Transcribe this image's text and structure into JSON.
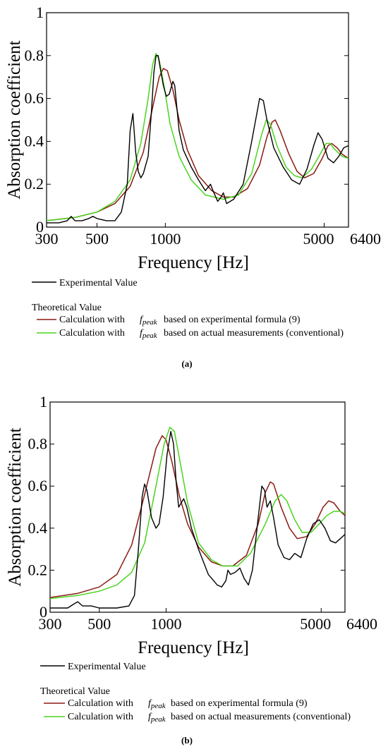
{
  "chart_data": [
    {
      "type": "line",
      "panel_label": "(a)",
      "ylabel": "Absorption coefficient",
      "xlabel": "Frequency [Hz]",
      "xscale": "log",
      "xlim": [
        300,
        6400
      ],
      "ylim": [
        0,
        1
      ],
      "x_ticks": [
        300,
        500,
        1000,
        5000,
        6400
      ],
      "y_ticks": [
        0,
        0.2,
        0.4,
        0.6,
        0.8,
        1
      ],
      "y_tick_labels": [
        "0",
        "0.2",
        "0.4",
        "0.6",
        "0.8",
        "1"
      ],
      "legend": {
        "experimental_label": "Experimental Value",
        "theoretical_heading": "Theoretical Value",
        "calc_prefix": "Calculation with",
        "fpeak_symbol": "f",
        "fpeak_subscript": "peak",
        "formula_suffix": "based on experimental formula (9)",
        "measured_suffix": "based on actual measurements (conventional)"
      },
      "series": [
        {
          "key": "experimental",
          "color": "#000000",
          "points": [
            [
              300,
              0.02
            ],
            [
              340,
              0.02
            ],
            [
              370,
              0.03
            ],
            [
              385,
              0.05
            ],
            [
              400,
              0.03
            ],
            [
              430,
              0.03
            ],
            [
              460,
              0.04
            ],
            [
              480,
              0.05
            ],
            [
              500,
              0.04
            ],
            [
              550,
              0.03
            ],
            [
              600,
              0.03
            ],
            [
              640,
              0.07
            ],
            [
              680,
              0.2
            ],
            [
              700,
              0.45
            ],
            [
              720,
              0.53
            ],
            [
              740,
              0.35
            ],
            [
              760,
              0.26
            ],
            [
              780,
              0.23
            ],
            [
              800,
              0.25
            ],
            [
              840,
              0.33
            ],
            [
              870,
              0.55
            ],
            [
              890,
              0.72
            ],
            [
              910,
              0.8
            ],
            [
              930,
              0.8
            ],
            [
              950,
              0.74
            ],
            [
              980,
              0.66
            ],
            [
              1010,
              0.61
            ],
            [
              1040,
              0.62
            ],
            [
              1080,
              0.68
            ],
            [
              1100,
              0.66
            ],
            [
              1150,
              0.45
            ],
            [
              1200,
              0.36
            ],
            [
              1300,
              0.28
            ],
            [
              1400,
              0.22
            ],
            [
              1500,
              0.17
            ],
            [
              1580,
              0.2
            ],
            [
              1620,
              0.17
            ],
            [
              1700,
              0.12
            ],
            [
              1760,
              0.14
            ],
            [
              1800,
              0.16
            ],
            [
              1860,
              0.11
            ],
            [
              2000,
              0.13
            ],
            [
              2200,
              0.2
            ],
            [
              2400,
              0.4
            ],
            [
              2600,
              0.6
            ],
            [
              2700,
              0.59
            ],
            [
              2800,
              0.5
            ],
            [
              3000,
              0.37
            ],
            [
              3300,
              0.28
            ],
            [
              3600,
              0.22
            ],
            [
              3900,
              0.2
            ],
            [
              4200,
              0.27
            ],
            [
              4500,
              0.38
            ],
            [
              4700,
              0.44
            ],
            [
              4900,
              0.41
            ],
            [
              5200,
              0.32
            ],
            [
              5500,
              0.3
            ],
            [
              5800,
              0.33
            ],
            [
              6100,
              0.37
            ],
            [
              6400,
              0.38
            ]
          ]
        },
        {
          "key": "formula",
          "color": "#8b1a12",
          "points": [
            [
              300,
              0.03
            ],
            [
              400,
              0.045
            ],
            [
              500,
              0.07
            ],
            [
              600,
              0.11
            ],
            [
              700,
              0.19
            ],
            [
              800,
              0.35
            ],
            [
              880,
              0.56
            ],
            [
              940,
              0.7
            ],
            [
              980,
              0.74
            ],
            [
              1020,
              0.73
            ],
            [
              1080,
              0.64
            ],
            [
              1150,
              0.5
            ],
            [
              1250,
              0.36
            ],
            [
              1400,
              0.24
            ],
            [
              1600,
              0.17
            ],
            [
              1800,
              0.14
            ],
            [
              2000,
              0.14
            ],
            [
              2300,
              0.18
            ],
            [
              2600,
              0.29
            ],
            [
              2800,
              0.42
            ],
            [
              2950,
              0.49
            ],
            [
              3050,
              0.5
            ],
            [
              3200,
              0.45
            ],
            [
              3500,
              0.34
            ],
            [
              3800,
              0.26
            ],
            [
              4100,
              0.23
            ],
            [
              4500,
              0.25
            ],
            [
              4900,
              0.32
            ],
            [
              5200,
              0.38
            ],
            [
              5400,
              0.39
            ],
            [
              5700,
              0.37
            ],
            [
              6000,
              0.34
            ],
            [
              6400,
              0.32
            ]
          ]
        },
        {
          "key": "measured",
          "color": "#4ad41e",
          "points": [
            [
              300,
              0.03
            ],
            [
              400,
              0.045
            ],
            [
              500,
              0.07
            ],
            [
              600,
              0.12
            ],
            [
              700,
              0.22
            ],
            [
              780,
              0.39
            ],
            [
              840,
              0.6
            ],
            [
              880,
              0.76
            ],
            [
              910,
              0.81
            ],
            [
              940,
              0.78
            ],
            [
              990,
              0.65
            ],
            [
              1050,
              0.48
            ],
            [
              1150,
              0.33
            ],
            [
              1300,
              0.22
            ],
            [
              1500,
              0.15
            ],
            [
              1800,
              0.13
            ],
            [
              2100,
              0.15
            ],
            [
              2400,
              0.25
            ],
            [
              2650,
              0.43
            ],
            [
              2780,
              0.5
            ],
            [
              2900,
              0.48
            ],
            [
              3100,
              0.38
            ],
            [
              3400,
              0.28
            ],
            [
              3700,
              0.24
            ],
            [
              4000,
              0.23
            ],
            [
              4400,
              0.27
            ],
            [
              4800,
              0.34
            ],
            [
              5100,
              0.39
            ],
            [
              5300,
              0.39
            ],
            [
              5600,
              0.36
            ],
            [
              6000,
              0.33
            ],
            [
              6400,
              0.32
            ]
          ]
        }
      ]
    },
    {
      "type": "line",
      "panel_label": "(b)",
      "ylabel": "Absorption coefficient",
      "xlabel": "Frequency [Hz]",
      "xscale": "log",
      "xlim": [
        300,
        6400
      ],
      "ylim": [
        0,
        1
      ],
      "x_ticks": [
        300,
        500,
        1000,
        5000,
        6400
      ],
      "y_ticks": [
        0,
        0.2,
        0.4,
        0.6,
        0.8,
        1
      ],
      "y_tick_labels": [
        "0",
        "0.2",
        "0.4",
        "0.6",
        "0.8",
        "1"
      ],
      "legend": {
        "experimental_label": "Experimental Value",
        "theoretical_heading": "Theoretical Value",
        "calc_prefix": "Calculation with",
        "fpeak_symbol": "f",
        "fpeak_subscript": "peak",
        "formula_suffix": "based on experimental formula (9)",
        "measured_suffix": "based on actual measurements (conventional)"
      },
      "series": [
        {
          "key": "experimental",
          "color": "#000000",
          "points": [
            [
              300,
              0.02
            ],
            [
              360,
              0.02
            ],
            [
              385,
              0.04
            ],
            [
              400,
              0.05
            ],
            [
              420,
              0.03
            ],
            [
              460,
              0.03
            ],
            [
              500,
              0.02
            ],
            [
              600,
              0.02
            ],
            [
              680,
              0.03
            ],
            [
              720,
              0.08
            ],
            [
              750,
              0.3
            ],
            [
              780,
              0.55
            ],
            [
              800,
              0.61
            ],
            [
              820,
              0.58
            ],
            [
              860,
              0.45
            ],
            [
              900,
              0.4
            ],
            [
              930,
              0.42
            ],
            [
              970,
              0.55
            ],
            [
              1010,
              0.75
            ],
            [
              1050,
              0.86
            ],
            [
              1080,
              0.8
            ],
            [
              1110,
              0.62
            ],
            [
              1140,
              0.5
            ],
            [
              1170,
              0.52
            ],
            [
              1200,
              0.54
            ],
            [
              1240,
              0.5
            ],
            [
              1300,
              0.4
            ],
            [
              1400,
              0.3
            ],
            [
              1550,
              0.18
            ],
            [
              1700,
              0.13
            ],
            [
              1780,
              0.12
            ],
            [
              1860,
              0.15
            ],
            [
              1900,
              0.2
            ],
            [
              1950,
              0.18
            ],
            [
              2050,
              0.19
            ],
            [
              2150,
              0.21
            ],
            [
              2250,
              0.16
            ],
            [
              2350,
              0.13
            ],
            [
              2450,
              0.2
            ],
            [
              2600,
              0.45
            ],
            [
              2700,
              0.6
            ],
            [
              2780,
              0.58
            ],
            [
              2850,
              0.5
            ],
            [
              2950,
              0.53
            ],
            [
              3050,
              0.45
            ],
            [
              3200,
              0.32
            ],
            [
              3400,
              0.26
            ],
            [
              3600,
              0.25
            ],
            [
              3800,
              0.28
            ],
            [
              4050,
              0.26
            ],
            [
              4300,
              0.35
            ],
            [
              4600,
              0.42
            ],
            [
              4900,
              0.44
            ],
            [
              5200,
              0.4
            ],
            [
              5500,
              0.34
            ],
            [
              5800,
              0.33
            ],
            [
              6100,
              0.35
            ],
            [
              6400,
              0.37
            ]
          ]
        },
        {
          "key": "formula",
          "color": "#8b1a12",
          "points": [
            [
              300,
              0.07
            ],
            [
              400,
              0.09
            ],
            [
              500,
              0.12
            ],
            [
              600,
              0.18
            ],
            [
              700,
              0.32
            ],
            [
              800,
              0.56
            ],
            [
              900,
              0.78
            ],
            [
              960,
              0.84
            ],
            [
              1000,
              0.82
            ],
            [
              1060,
              0.72
            ],
            [
              1150,
              0.55
            ],
            [
              1250,
              0.42
            ],
            [
              1400,
              0.31
            ],
            [
              1600,
              0.24
            ],
            [
              1800,
              0.22
            ],
            [
              2000,
              0.22
            ],
            [
              2300,
              0.27
            ],
            [
              2600,
              0.42
            ],
            [
              2800,
              0.57
            ],
            [
              2950,
              0.62
            ],
            [
              3050,
              0.61
            ],
            [
              3300,
              0.5
            ],
            [
              3600,
              0.4
            ],
            [
              3900,
              0.35
            ],
            [
              4300,
              0.36
            ],
            [
              4700,
              0.42
            ],
            [
              5100,
              0.5
            ],
            [
              5400,
              0.53
            ],
            [
              5700,
              0.52
            ],
            [
              6100,
              0.48
            ],
            [
              6400,
              0.46
            ]
          ]
        },
        {
          "key": "measured",
          "color": "#4ad41e",
          "points": [
            [
              300,
              0.065
            ],
            [
              400,
              0.08
            ],
            [
              500,
              0.1
            ],
            [
              600,
              0.13
            ],
            [
              700,
              0.19
            ],
            [
              800,
              0.33
            ],
            [
              900,
              0.6
            ],
            [
              980,
              0.8
            ],
            [
              1040,
              0.88
            ],
            [
              1090,
              0.86
            ],
            [
              1150,
              0.73
            ],
            [
              1250,
              0.52
            ],
            [
              1400,
              0.33
            ],
            [
              1600,
              0.25
            ],
            [
              1800,
              0.22
            ],
            [
              2100,
              0.22
            ],
            [
              2400,
              0.28
            ],
            [
              2800,
              0.42
            ],
            [
              3100,
              0.53
            ],
            [
              3300,
              0.56
            ],
            [
              3500,
              0.53
            ],
            [
              3800,
              0.44
            ],
            [
              4100,
              0.38
            ],
            [
              4500,
              0.38
            ],
            [
              4900,
              0.42
            ],
            [
              5300,
              0.46
            ],
            [
              5700,
              0.48
            ],
            [
              6100,
              0.48
            ],
            [
              6400,
              0.47
            ]
          ]
        }
      ]
    }
  ]
}
